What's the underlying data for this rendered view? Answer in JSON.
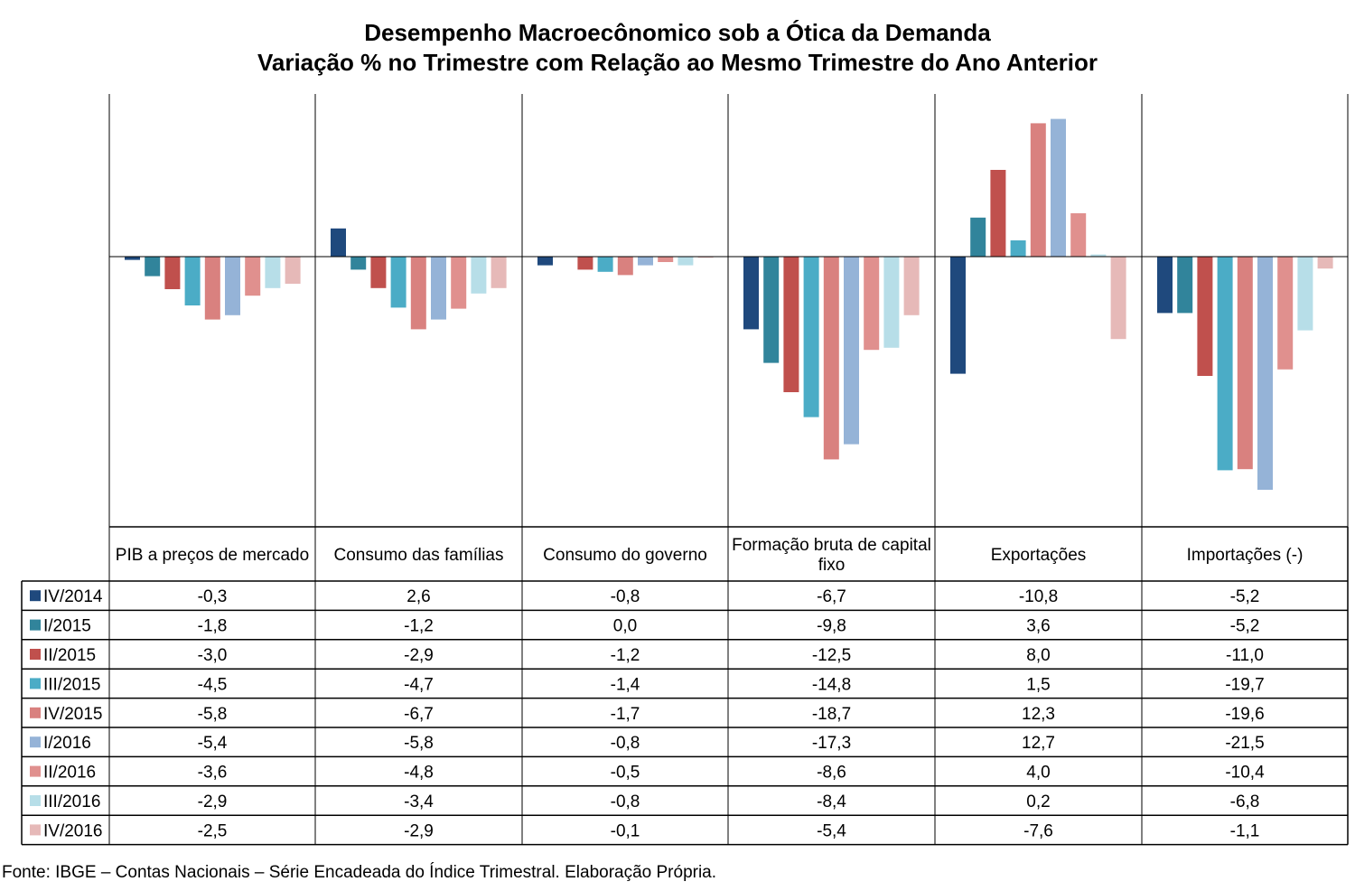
{
  "chart_data": {
    "type": "bar",
    "title": "Desempenho Macroecônomico sob a Ótica da Demanda",
    "subtitle": "Variação % no Trimestre com Relação ao Mesmo Trimestre do Ano Anterior",
    "categories": [
      "PIB a preços de mercado",
      "Consumo das famílias",
      "Consumo do governo",
      "Formação bruta de capital fixo",
      "Exportações",
      "Importações (-)"
    ],
    "series": [
      {
        "name": "IV/2014",
        "color": "#1F497D",
        "values": [
          -0.3,
          2.6,
          -0.8,
          -6.7,
          -10.8,
          -5.2
        ],
        "labels": [
          "-0,3",
          "2,6",
          "-0,8",
          "-6,7",
          "-10,8",
          "-5,2"
        ]
      },
      {
        "name": "I/2015",
        "color": "#31849B",
        "values": [
          -1.8,
          -1.2,
          0.0,
          -9.8,
          3.6,
          -5.2
        ],
        "labels": [
          "-1,8",
          "-1,2",
          "0,0",
          "-9,8",
          "3,6",
          "-5,2"
        ]
      },
      {
        "name": "II/2015",
        "color": "#C0504D",
        "values": [
          -3.0,
          -2.9,
          -1.2,
          -12.5,
          8.0,
          -11.0
        ],
        "labels": [
          "-3,0",
          "-2,9",
          "-1,2",
          "-12,5",
          "8,0",
          "-11,0"
        ]
      },
      {
        "name": "III/2015",
        "color": "#4BACC6",
        "values": [
          -4.5,
          -4.7,
          -1.4,
          -14.8,
          1.5,
          -19.7
        ],
        "labels": [
          "-4,5",
          "-4,7",
          "-1,4",
          "-14,8",
          "1,5",
          "-19,7"
        ]
      },
      {
        "name": "IV/2015",
        "color": "#D9817F",
        "values": [
          -5.8,
          -6.7,
          -1.7,
          -18.7,
          12.3,
          -19.6
        ],
        "labels": [
          "-5,8",
          "-6,7",
          "-1,7",
          "-18,7",
          "12,3",
          "-19,6"
        ]
      },
      {
        "name": "I/2016",
        "color": "#95B3D7",
        "values": [
          -5.4,
          -5.8,
          -0.8,
          -17.3,
          12.7,
          -21.5
        ],
        "labels": [
          "-5,4",
          "-5,8",
          "-0,8",
          "-17,3",
          "12,7",
          "-21,5"
        ]
      },
      {
        "name": "II/2016",
        "color": "#E0908E",
        "values": [
          -3.6,
          -4.8,
          -0.5,
          -8.6,
          4.0,
          -10.4
        ],
        "labels": [
          "-3,6",
          "-4,8",
          "-0,5",
          "-8,6",
          "4,0",
          "-10,4"
        ]
      },
      {
        "name": "III/2016",
        "color": "#B7DEE8",
        "values": [
          -2.9,
          -3.4,
          -0.8,
          -8.4,
          0.2,
          -6.8
        ],
        "labels": [
          "-2,9",
          "-3,4",
          "-0,8",
          "-8,4",
          "0,2",
          "-6,8"
        ]
      },
      {
        "name": "IV/2016",
        "color": "#E6B9B8",
        "values": [
          -2.5,
          -2.9,
          -0.1,
          -5.4,
          -7.6,
          -1.1
        ],
        "labels": [
          "-2,5",
          "-2,9",
          "-0,1",
          "-5,4",
          "-7,6",
          "-1,1"
        ]
      }
    ],
    "ylim": [
      -24.5,
      15
    ],
    "grid": false,
    "legend": "data-table-left"
  },
  "source": "Fonte: IBGE – Contas Nacionais – Série Encadeada do Índice Trimestral. Elaboração Própria."
}
